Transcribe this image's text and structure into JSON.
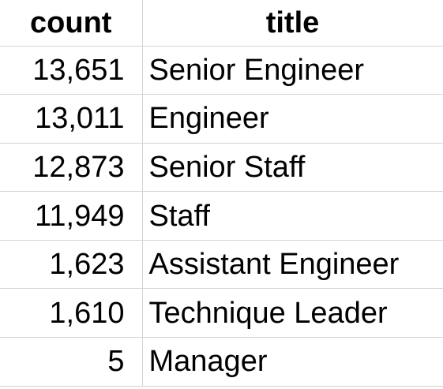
{
  "table": {
    "columns": [
      "count",
      "title"
    ],
    "rows": [
      {
        "count": "13,651",
        "title": "Senior Engineer"
      },
      {
        "count": "13,011",
        "title": "Engineer"
      },
      {
        "count": "12,873",
        "title": "Senior Staff"
      },
      {
        "count": "11,949",
        "title": "Staff"
      },
      {
        "count": "1,623",
        "title": "Assistant Engineer"
      },
      {
        "count": "1,610",
        "title": "Technique Leader"
      },
      {
        "count": "5",
        "title": "Manager"
      }
    ]
  }
}
